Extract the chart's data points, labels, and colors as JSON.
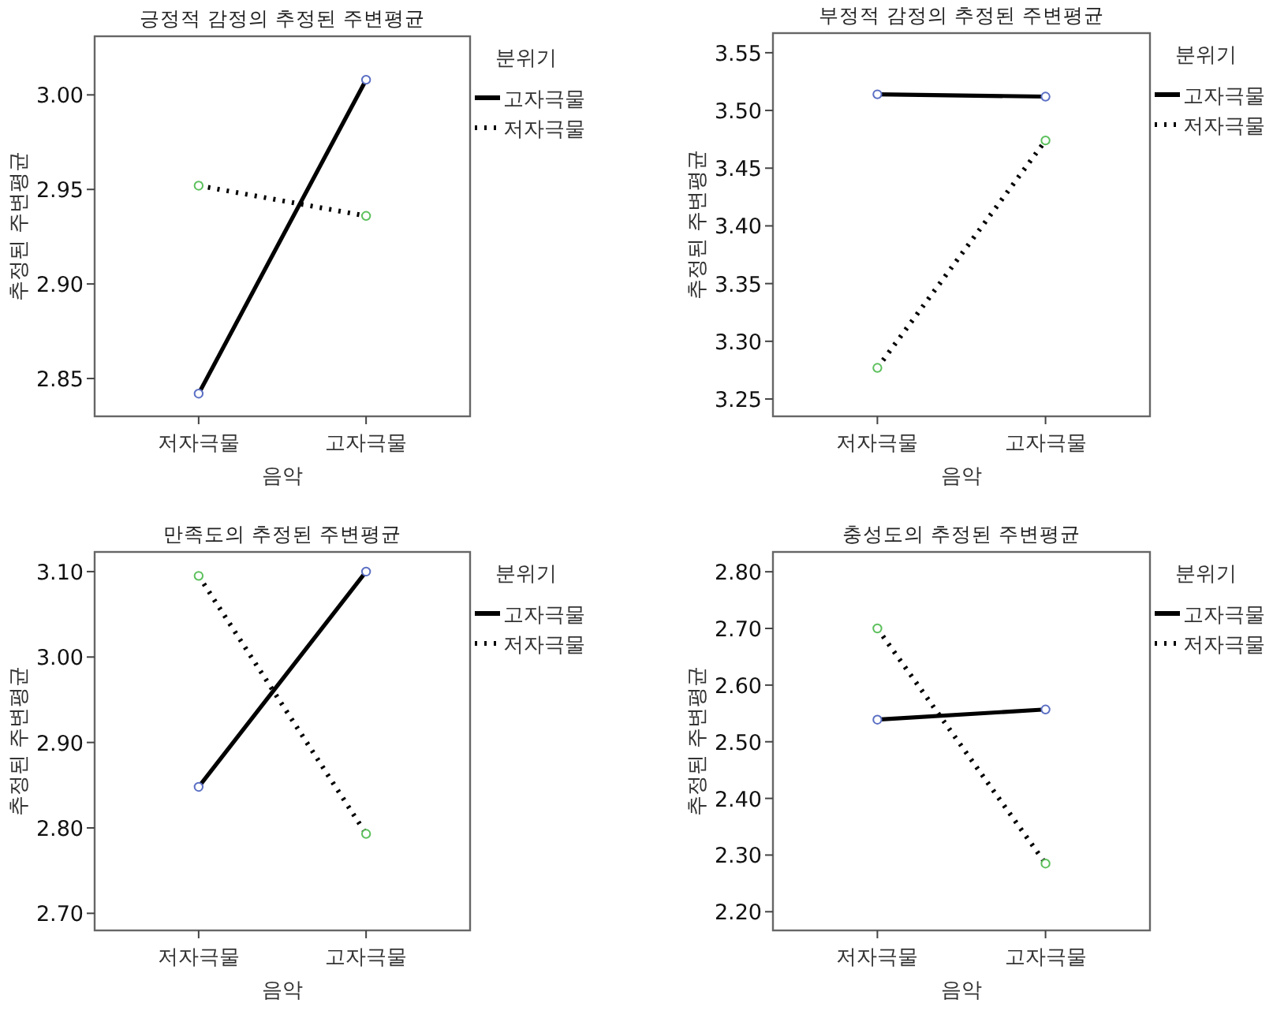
{
  "chart_data": [
    {
      "type": "line",
      "title": "긍정적 감정의 추정된 주변평균",
      "xlabel": "음악",
      "ylabel": "추정된 주변평균",
      "legend_title": "분위기",
      "legend": "right",
      "marker": "circle",
      "grid": false,
      "categories": [
        "저자극물",
        "고자극물"
      ],
      "ylim": [
        2.83,
        3.031
      ],
      "yticks": [
        2.85,
        {
          "value": 2.9,
          "label": "2.90"
        },
        2.95,
        {
          "value": 3,
          "label": "3.00"
        }
      ],
      "series": [
        {
          "name": "고자극물",
          "color": "#000000",
          "line_style": "solid",
          "colors": [
            "#5b6fc4",
            "#5b6fc4"
          ],
          "values": [
            2.842,
            3.008
          ]
        },
        {
          "name": "저자극물",
          "color": "#000000",
          "line_style": "dotted",
          "colors": [
            "#5cc05c",
            "#5cc05c"
          ],
          "values": [
            2.952,
            2.936
          ]
        }
      ]
    },
    {
      "type": "line",
      "title": "부정적 감정의 추정된 주변평균",
      "xlabel": "음악",
      "ylabel": "추정된 주변평균",
      "legend_title": "분위기",
      "legend": "right",
      "marker": "circle",
      "grid": false,
      "categories": [
        "저자극물",
        "고자극물"
      ],
      "ylim": [
        3.235,
        3.567
      ],
      "yticks": [
        3.25,
        {
          "value": 3.3,
          "label": "3.30"
        },
        3.35,
        {
          "value": 3.4,
          "label": "3.40"
        },
        3.45,
        {
          "value": 3.5,
          "label": "3.50"
        },
        3.55
      ],
      "series": [
        {
          "name": "고자극물",
          "color": "#000000",
          "line_style": "solid",
          "colors": [
            "#5b6fc4",
            "#5b6fc4"
          ],
          "values": [
            3.514,
            3.512
          ]
        },
        {
          "name": "저자극물",
          "color": "#000000",
          "line_style": "dotted",
          "colors": [
            "#5cc05c",
            "#5cc05c"
          ],
          "values": [
            3.277,
            3.474
          ]
        }
      ]
    },
    {
      "type": "line",
      "title": "만족도의 추정된 주변평균",
      "xlabel": "음악",
      "ylabel": "추정된 주변평균",
      "legend_title": "분위기",
      "legend": "right",
      "marker": "circle",
      "grid": false,
      "categories": [
        "저자극물",
        "고자극물"
      ],
      "ylim": [
        2.68,
        3.123
      ],
      "yticks": [
        {
          "value": 2.7,
          "label": "2.70"
        },
        {
          "value": 2.8,
          "label": "2.80"
        },
        {
          "value": 2.9,
          "label": "2.90"
        },
        {
          "value": 3,
          "label": "3.00"
        },
        {
          "value": 3.1,
          "label": "3.10"
        }
      ],
      "series": [
        {
          "name": "고자극물",
          "color": "#000000",
          "line_style": "solid",
          "colors": [
            "#5b6fc4",
            "#5b6fc4"
          ],
          "values": [
            2.848,
            3.1
          ]
        },
        {
          "name": "저자극물",
          "color": "#000000",
          "line_style": "dotted",
          "colors": [
            "#5cc05c",
            "#5cc05c"
          ],
          "values": [
            3.095,
            2.793
          ]
        }
      ]
    },
    {
      "type": "line",
      "title": "충성도의 추정된 주변평균",
      "xlabel": "음악",
      "ylabel": "추정된 주변평균",
      "legend_title": "분위기",
      "legend": "right",
      "marker": "circle",
      "grid": false,
      "categories": [
        "저자극물",
        "고자극물"
      ],
      "ylim": [
        2.167,
        2.835
      ],
      "yticks": [
        {
          "value": 2.2,
          "label": "2.20"
        },
        {
          "value": 2.3,
          "label": "2.30"
        },
        {
          "value": 2.4,
          "label": "2.40"
        },
        {
          "value": 2.5,
          "label": "2.50"
        },
        {
          "value": 2.6,
          "label": "2.60"
        },
        {
          "value": 2.7,
          "label": "2.70"
        },
        {
          "value": 2.8,
          "label": "2.80"
        }
      ],
      "series": [
        {
          "name": "고자극물",
          "color": "#000000",
          "line_style": "solid",
          "colors": [
            "#5b6fc4",
            "#5b6fc4"
          ],
          "values": [
            2.539,
            2.557
          ]
        },
        {
          "name": "저자극물",
          "color": "#000000",
          "line_style": "dotted",
          "colors": [
            "#5cc05c",
            "#5cc05c"
          ],
          "values": [
            2.7,
            2.285
          ]
        }
      ]
    }
  ]
}
